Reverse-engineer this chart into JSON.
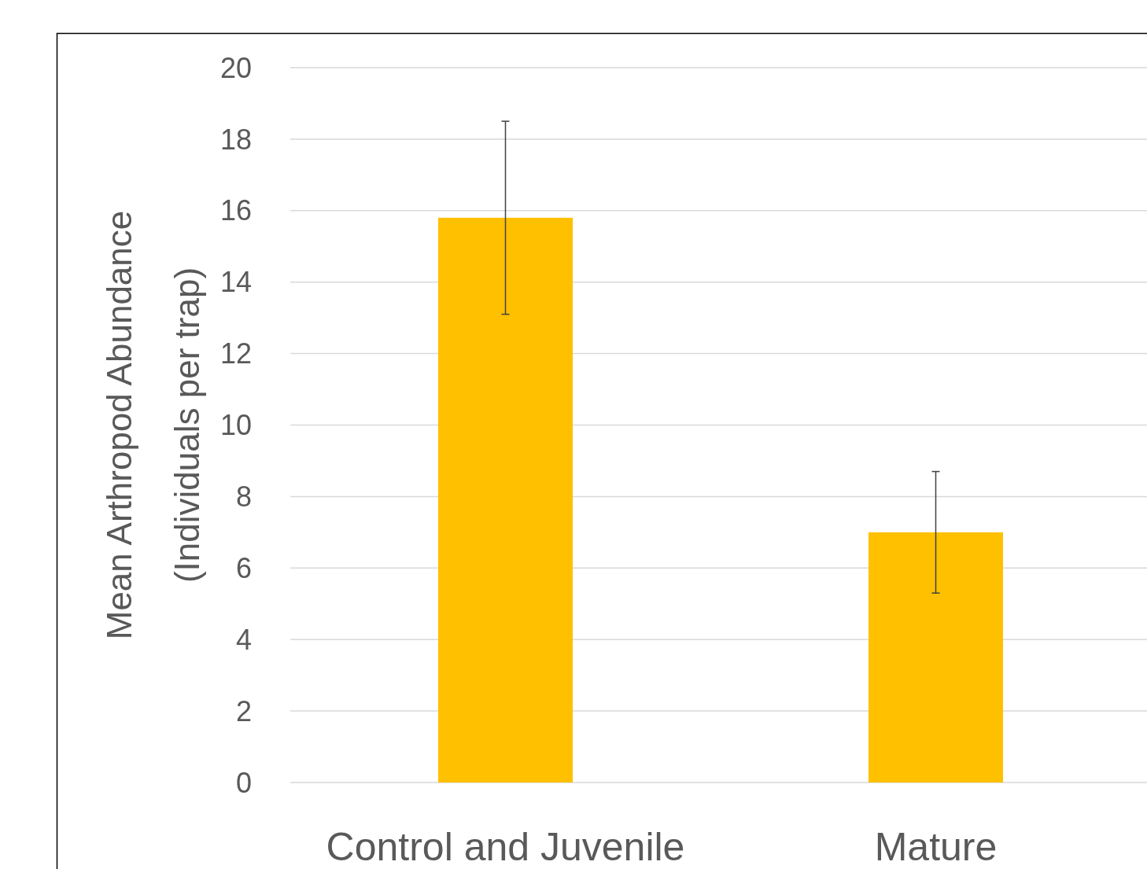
{
  "chart_data": {
    "type": "bar",
    "ylabel": "Mean Arthropod Abundance\n(Individuals per trap)",
    "categories": [
      "Control and Juvenile",
      "Mature"
    ],
    "values": [
      15.8,
      7.0
    ],
    "errors": [
      2.7,
      1.7
    ],
    "color": "#ffc000",
    "ylim": [
      0,
      20
    ],
    "yticks": [
      0,
      2,
      4,
      6,
      8,
      10,
      12,
      14,
      16,
      18,
      20
    ],
    "grid": "y"
  }
}
